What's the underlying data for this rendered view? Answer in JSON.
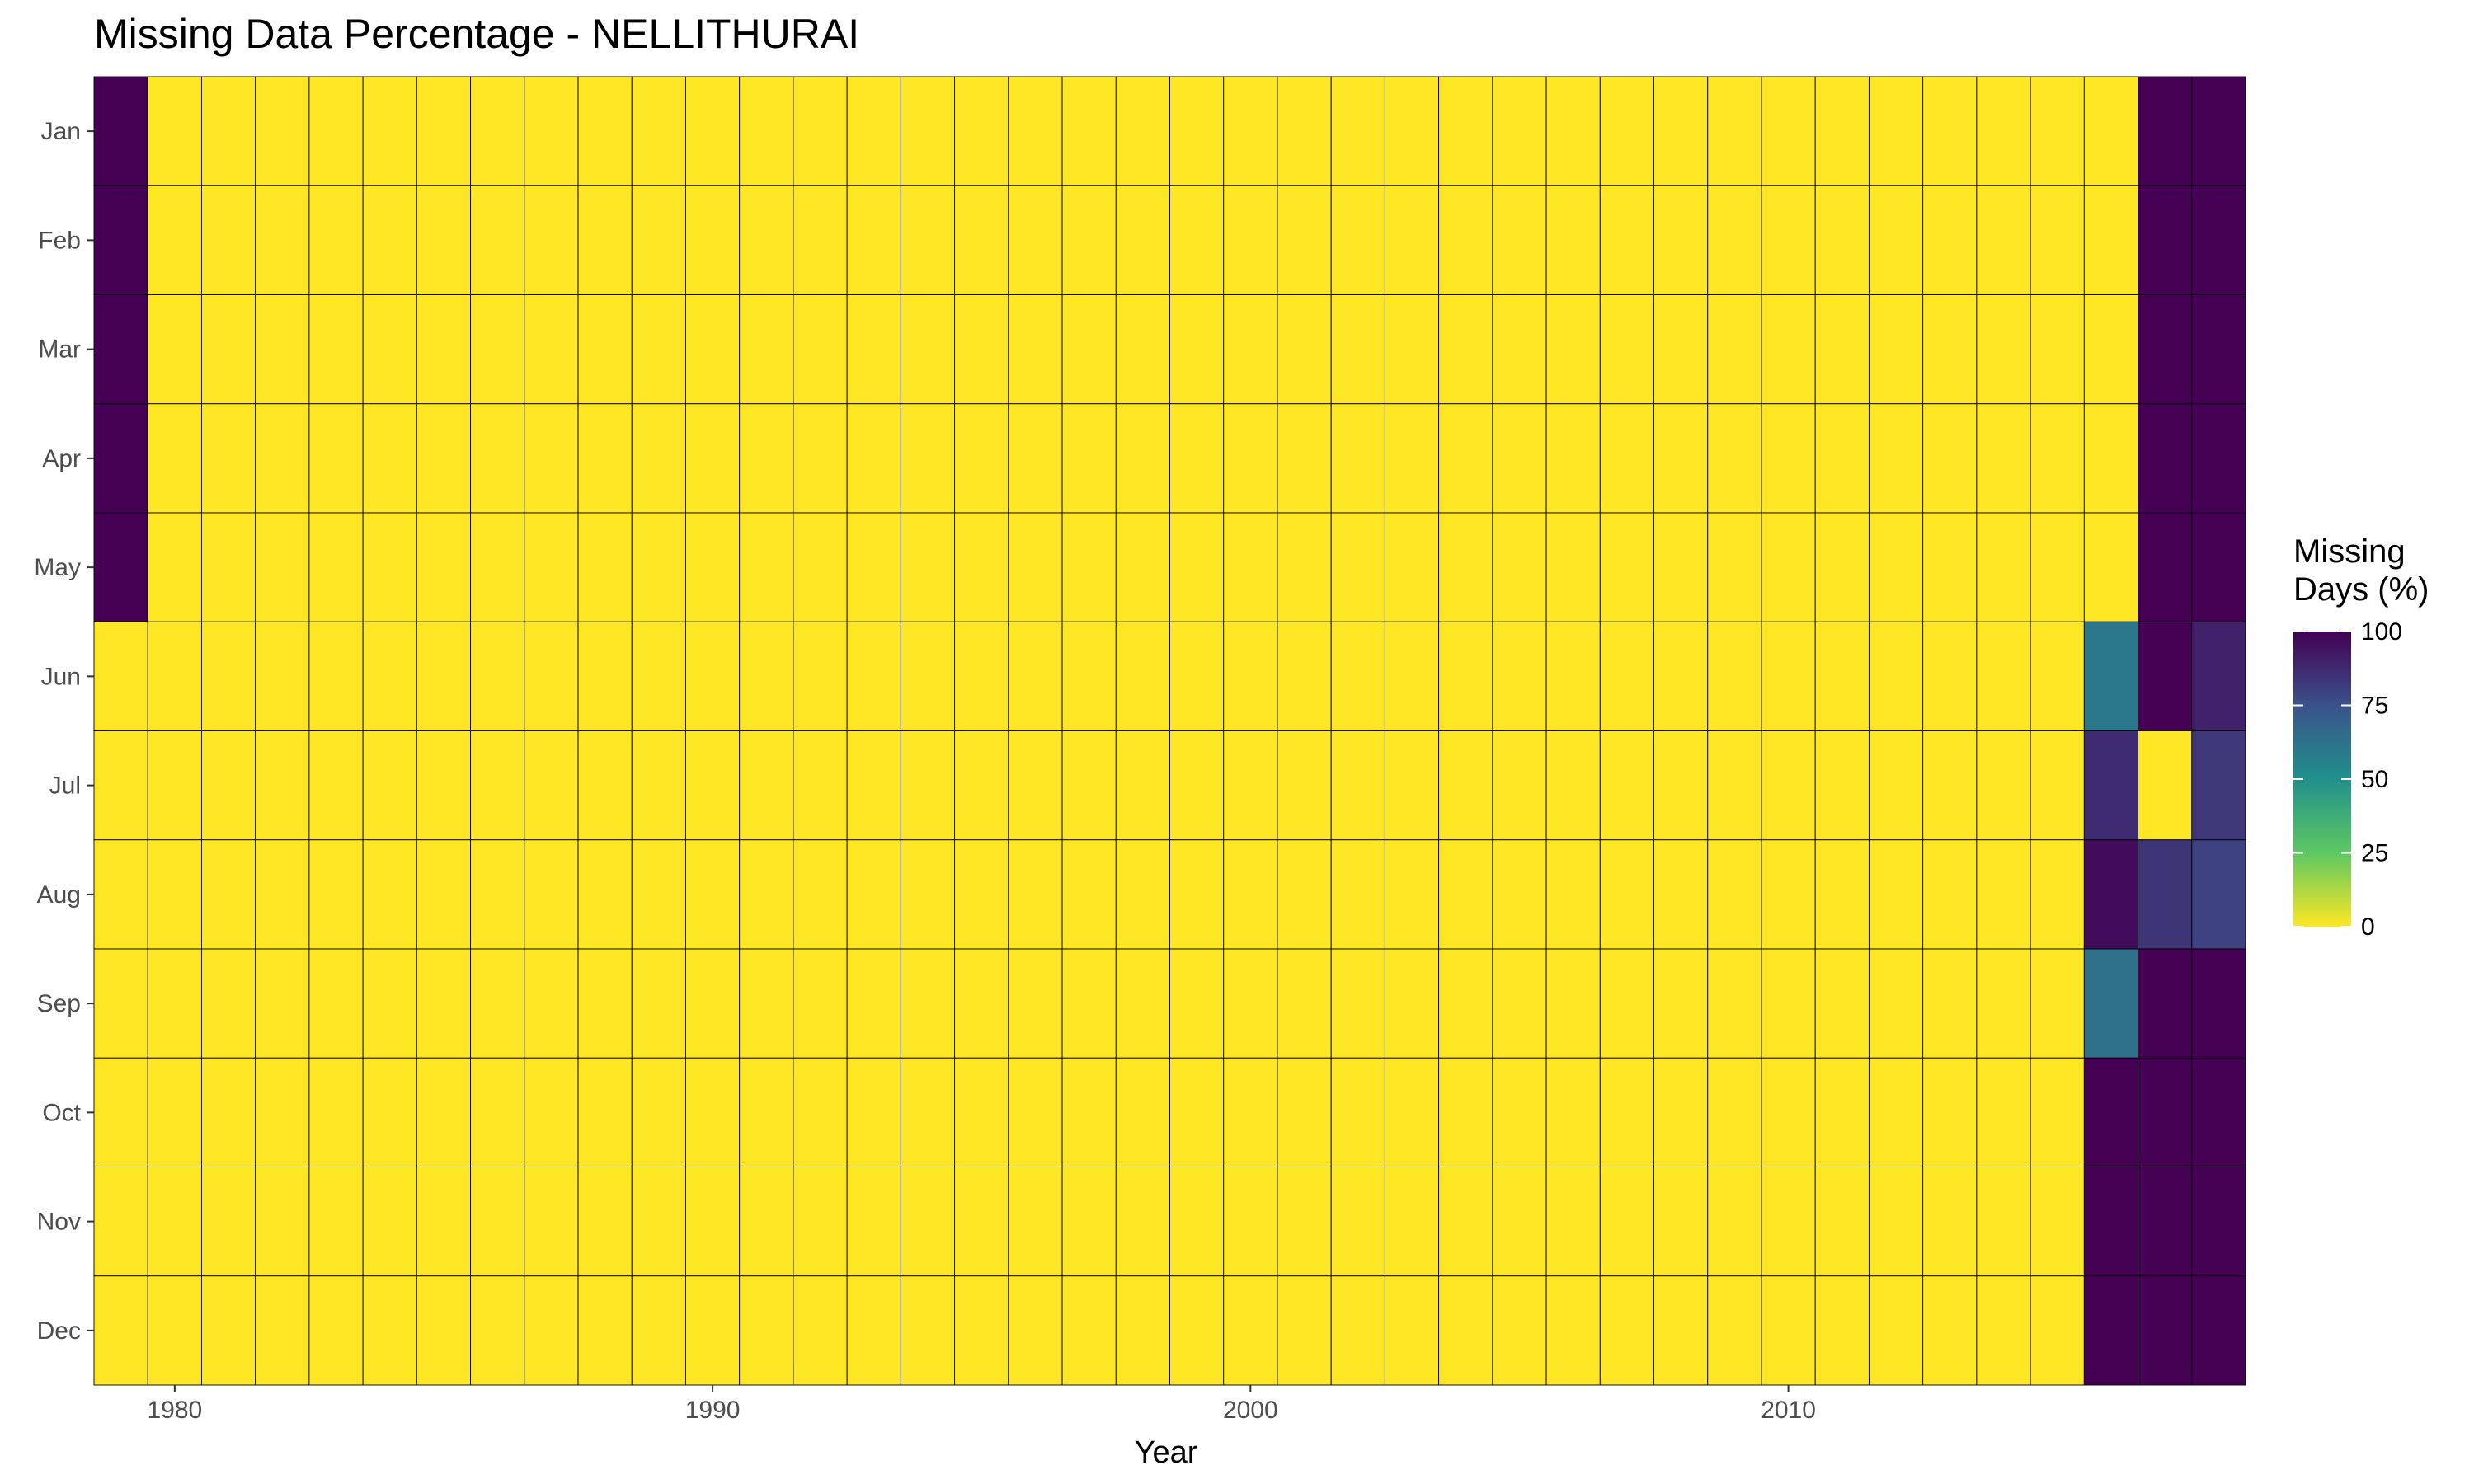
{
  "chart_data": {
    "type": "heatmap",
    "title": "Missing Data Percentage - NELLITHURAI",
    "xlabel": "Year",
    "ylabel": "",
    "x_years": [
      1979,
      1980,
      1981,
      1982,
      1983,
      1984,
      1985,
      1986,
      1987,
      1988,
      1989,
      1990,
      1991,
      1992,
      1993,
      1994,
      1995,
      1996,
      1997,
      1998,
      1999,
      2000,
      2001,
      2002,
      2003,
      2004,
      2005,
      2006,
      2007,
      2008,
      2009,
      2010,
      2011,
      2012,
      2013,
      2014,
      2015,
      2016,
      2017,
      2018
    ],
    "x_ticks": [
      1980,
      1990,
      2000,
      2010
    ],
    "x_tick_labels": [
      "1980",
      "1990",
      "2000",
      "2010"
    ],
    "months": [
      "Jan",
      "Feb",
      "Mar",
      "Apr",
      "May",
      "Jun",
      "Jul",
      "Aug",
      "Sep",
      "Oct",
      "Nov",
      "Dec"
    ],
    "default_value": 0,
    "nonzero_cells": [
      {
        "year": 1979,
        "month": "Jan",
        "value": 100
      },
      {
        "year": 1979,
        "month": "Feb",
        "value": 100
      },
      {
        "year": 1979,
        "month": "Mar",
        "value": 100
      },
      {
        "year": 1979,
        "month": "Apr",
        "value": 100
      },
      {
        "year": 1979,
        "month": "May",
        "value": 100
      },
      {
        "year": 2016,
        "month": "Jun",
        "value": 60
      },
      {
        "year": 2016,
        "month": "Jul",
        "value": 87
      },
      {
        "year": 2016,
        "month": "Aug",
        "value": 97
      },
      {
        "year": 2016,
        "month": "Sep",
        "value": 63
      },
      {
        "year": 2016,
        "month": "Oct",
        "value": 100
      },
      {
        "year": 2016,
        "month": "Nov",
        "value": 100
      },
      {
        "year": 2016,
        "month": "Dec",
        "value": 100
      },
      {
        "year": 2017,
        "month": "Jan",
        "value": 100
      },
      {
        "year": 2017,
        "month": "Feb",
        "value": 100
      },
      {
        "year": 2017,
        "month": "Mar",
        "value": 100
      },
      {
        "year": 2017,
        "month": "Apr",
        "value": 100
      },
      {
        "year": 2017,
        "month": "May",
        "value": 100
      },
      {
        "year": 2017,
        "month": "Jun",
        "value": 100
      },
      {
        "year": 2017,
        "month": "Jul",
        "value": 0
      },
      {
        "year": 2017,
        "month": "Aug",
        "value": 84
      },
      {
        "year": 2017,
        "month": "Sep",
        "value": 100
      },
      {
        "year": 2017,
        "month": "Oct",
        "value": 100
      },
      {
        "year": 2017,
        "month": "Nov",
        "value": 100
      },
      {
        "year": 2017,
        "month": "Dec",
        "value": 100
      },
      {
        "year": 2018,
        "month": "Jan",
        "value": 100
      },
      {
        "year": 2018,
        "month": "Feb",
        "value": 100
      },
      {
        "year": 2018,
        "month": "Mar",
        "value": 100
      },
      {
        "year": 2018,
        "month": "Apr",
        "value": 100
      },
      {
        "year": 2018,
        "month": "May",
        "value": 100
      },
      {
        "year": 2018,
        "month": "Jun",
        "value": 90
      },
      {
        "year": 2018,
        "month": "Jul",
        "value": 83
      },
      {
        "year": 2018,
        "month": "Aug",
        "value": 80
      },
      {
        "year": 2018,
        "month": "Sep",
        "value": 100
      },
      {
        "year": 2018,
        "month": "Oct",
        "value": 100
      },
      {
        "year": 2018,
        "month": "Nov",
        "value": 100
      },
      {
        "year": 2018,
        "month": "Dec",
        "value": 100
      }
    ],
    "color_scale": {
      "name": "viridis (reversed)",
      "range": [
        0,
        100
      ],
      "low_color": "#FDE725",
      "high_color": "#440154"
    },
    "grid": false,
    "legend": {
      "title_lines": [
        "Missing",
        "Days (%)"
      ],
      "ticks": [
        100,
        75,
        50,
        25,
        0
      ],
      "tick_labels": [
        "100",
        "75",
        "50",
        "25",
        "0"
      ],
      "placement": "right"
    }
  }
}
